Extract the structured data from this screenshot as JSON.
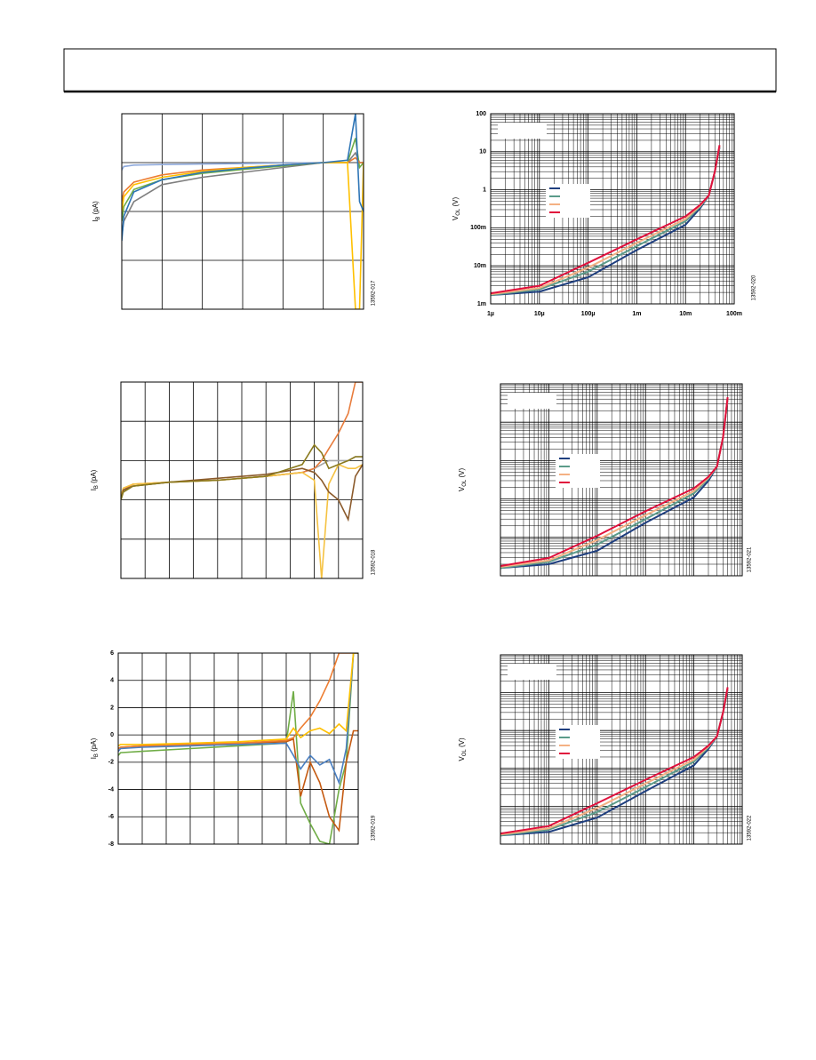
{
  "chart_data": [
    {
      "type": "line",
      "y_label": [
        "I",
        "B",
        " (pA)"
      ],
      "figure_id": "13592-017",
      "xlim": [
        0,
        6
      ],
      "ylim": [
        0,
        4
      ],
      "xticks": [
        0,
        1,
        2,
        3,
        4,
        5,
        6
      ],
      "yticks": [
        0,
        1,
        2,
        3,
        4
      ],
      "x_tick_labels": false,
      "y_tick_labels": false,
      "grid": true,
      "x": [
        0,
        0.05,
        0.3,
        1,
        2,
        3,
        4,
        5,
        5.6,
        5.8,
        5.9,
        6
      ],
      "series": [
        {
          "color": "#8faadc",
          "values": [
            2.85,
            2.92,
            2.95,
            2.96,
            2.97,
            2.98,
            2.99,
            3.0,
            3.0,
            3.1,
            3.0,
            3.0
          ]
        },
        {
          "color": "#7f7f7f",
          "values": [
            1.5,
            1.8,
            2.2,
            2.55,
            2.7,
            2.8,
            2.9,
            3.0,
            3.0,
            3.2,
            3.0,
            3.0
          ]
        },
        {
          "color": "#70ad47",
          "values": [
            1.8,
            2.1,
            2.45,
            2.65,
            2.78,
            2.86,
            2.93,
            3.0,
            3.0,
            3.5,
            2.9,
            3.0
          ]
        },
        {
          "color": "#ed7d31",
          "values": [
            2.2,
            2.4,
            2.6,
            2.75,
            2.85,
            2.9,
            2.95,
            3.0,
            3.0,
            3.1,
            3.0,
            3.0
          ]
        },
        {
          "color": "#ffc000",
          "values": [
            2.0,
            2.3,
            2.55,
            2.7,
            2.82,
            2.9,
            2.95,
            3.0,
            3.0,
            0,
            0,
            3.0
          ]
        },
        {
          "color": "#2e75b6",
          "values": [
            1.4,
            1.9,
            2.4,
            2.65,
            2.8,
            2.88,
            2.95,
            3.0,
            3.05,
            4,
            2.2,
            2.0
          ]
        }
      ]
    },
    {
      "type": "line",
      "y_label": [
        "V",
        "OL",
        " (V)"
      ],
      "figure_id": "13592-020",
      "xlog": true,
      "ylog": true,
      "xlim": [
        1e-06,
        0.1
      ],
      "ylim": [
        0.001,
        100
      ],
      "xticks": [
        {
          "value": 1e-06,
          "label": "1µ"
        },
        {
          "value": 1e-05,
          "label": "10µ"
        },
        {
          "value": 0.0001,
          "label": "100µ"
        },
        {
          "value": 0.001,
          "label": "1m"
        },
        {
          "value": 0.01,
          "label": "10m"
        },
        {
          "value": 0.1,
          "label": "100m"
        }
      ],
      "yticks": [
        {
          "value": 0.001,
          "label": "1m"
        },
        {
          "value": 0.01,
          "label": "10m"
        },
        {
          "value": 0.1,
          "label": "100m"
        },
        1,
        10,
        100
      ],
      "x_tick_labels": true,
      "y_tick_labels": true,
      "grid": true,
      "x": [
        1e-06,
        1e-05,
        0.0001,
        0.001,
        0.01,
        0.02,
        0.03,
        0.04,
        0.05
      ],
      "series": [
        {
          "color": "#1f3f7f",
          "values": [
            0.0017,
            0.0021,
            0.005,
            0.026,
            0.12,
            0.33,
            0.7,
            3,
            13
          ]
        },
        {
          "color": "#5b9b8a",
          "values": [
            0.0017,
            0.0024,
            0.007,
            0.033,
            0.15,
            0.36,
            0.7,
            3,
            14
          ]
        },
        {
          "color": "#f4b183",
          "values": [
            0.0018,
            0.0026,
            0.009,
            0.04,
            0.17,
            0.38,
            0.7,
            3,
            14
          ]
        },
        {
          "color": "#e0103c",
          "values": [
            0.0019,
            0.003,
            0.012,
            0.05,
            0.2,
            0.4,
            0.7,
            3,
            15
          ]
        }
      ]
    },
    {
      "type": "line",
      "y_label": [
        "I",
        "B",
        " (pA)"
      ],
      "figure_id": "13592-018",
      "xlim": [
        0,
        10
      ],
      "ylim": [
        0,
        5
      ],
      "xticks": [
        0,
        1,
        2,
        3,
        4,
        5,
        6,
        7,
        8,
        9,
        10
      ],
      "yticks": [
        0,
        1,
        2,
        3,
        4,
        5
      ],
      "x_tick_labels": false,
      "y_tick_labels": false,
      "grid": true,
      "x": [
        0,
        0.1,
        0.5,
        2,
        4,
        6,
        7.5,
        8,
        8.3,
        8.6,
        9,
        9.4,
        9.7,
        10
      ],
      "series": [
        {
          "color": "#a5a5a5",
          "values": [
            2.0,
            2.2,
            2.35,
            2.45,
            2.5,
            2.6,
            2.7,
            2.8,
            2.9,
            3.0,
            3.0,
            3.0,
            3.1,
            3.1
          ]
        },
        {
          "color": "#e87c3c",
          "values": [
            2.1,
            2.25,
            2.4,
            2.45,
            2.5,
            2.6,
            2.7,
            2.8,
            3.0,
            3.3,
            3.7,
            4.2,
            5,
            5
          ]
        },
        {
          "color": "#f5c242",
          "values": [
            2.1,
            2.3,
            2.4,
            2.45,
            2.5,
            2.6,
            2.7,
            2.5,
            0,
            2.4,
            2.9,
            2.8,
            2.8,
            2.9
          ]
        },
        {
          "color": "#8b5a2b",
          "values": [
            2.0,
            2.25,
            2.35,
            2.45,
            2.55,
            2.65,
            2.8,
            2.7,
            2.5,
            2.2,
            2.0,
            1.5,
            2.6,
            2.9
          ]
        },
        {
          "color": "#8a7a1e",
          "values": [
            2.0,
            2.2,
            2.35,
            2.45,
            2.5,
            2.6,
            2.9,
            3.4,
            3.2,
            2.8,
            2.9,
            3.0,
            3.1,
            3.1
          ]
        }
      ]
    },
    {
      "type": "line",
      "y_label": [
        "V",
        "OL",
        " (V)"
      ],
      "figure_id": "13592-021",
      "xlog": true,
      "ylog": true,
      "xlim": [
        1e-06,
        0.1
      ],
      "ylim": [
        0.001,
        100
      ],
      "xticks": [
        1e-06,
        1e-05,
        0.0001,
        0.001,
        0.01,
        0.1
      ],
      "yticks": [
        0.001,
        0.01,
        0.1,
        1,
        10,
        100
      ],
      "x_tick_labels": false,
      "y_tick_labels": false,
      "grid": true,
      "x": [
        1e-06,
        1e-05,
        0.0001,
        0.001,
        0.01,
        0.02,
        0.03,
        0.04,
        0.05
      ],
      "series": [
        {
          "color": "#1f3f7f",
          "values": [
            0.0016,
            0.002,
            0.0045,
            0.024,
            0.11,
            0.3,
            0.7,
            4,
            40
          ]
        },
        {
          "color": "#5b9b8a",
          "values": [
            0.0016,
            0.0023,
            0.0065,
            0.03,
            0.14,
            0.34,
            0.7,
            4,
            42
          ]
        },
        {
          "color": "#f4b183",
          "values": [
            0.0017,
            0.0025,
            0.0085,
            0.038,
            0.16,
            0.36,
            0.7,
            4,
            42
          ]
        },
        {
          "color": "#e0103c",
          "values": [
            0.0018,
            0.0029,
            0.011,
            0.048,
            0.19,
            0.38,
            0.7,
            4,
            45
          ]
        }
      ]
    },
    {
      "type": "line",
      "y_label": [
        "I",
        "B",
        " (pA)"
      ],
      "figure_id": "13592-019",
      "xlim": [
        0,
        10
      ],
      "ylim": [
        -8,
        6
      ],
      "xticks": [
        0,
        1,
        2,
        3,
        4,
        5,
        6,
        7,
        8,
        9,
        10
      ],
      "yticks": [
        6,
        4,
        2,
        0,
        -2,
        -4,
        -6,
        -8
      ],
      "x_tick_labels": false,
      "y_tick_labels": true,
      "grid": true,
      "x": [
        0,
        0.1,
        1,
        3,
        5,
        7,
        7.3,
        7.6,
        8,
        8.4,
        8.8,
        9.2,
        9.5,
        9.8,
        10
      ],
      "series": [
        {
          "color": "#70ad47",
          "values": [
            -1.5,
            -1.3,
            -1.2,
            -1,
            -0.8,
            -0.6,
            3.2,
            -5,
            -6.5,
            -7.8,
            -8,
            -4,
            -2,
            6,
            6
          ]
        },
        {
          "color": "#c55a11",
          "values": [
            -1,
            -0.9,
            -0.8,
            -0.7,
            -0.6,
            -0.5,
            -0.3,
            -4.5,
            -2,
            -3.5,
            -6,
            -7,
            -2,
            0.3,
            0.3
          ]
        },
        {
          "color": "#ed7d31",
          "values": [
            -1,
            -0.9,
            -0.8,
            -0.7,
            -0.6,
            -0.4,
            -0.2,
            0.5,
            1.3,
            2.5,
            4,
            6,
            6,
            6,
            6
          ]
        },
        {
          "color": "#4a7fc1",
          "values": [
            -1.2,
            -1,
            -0.9,
            -0.8,
            -0.7,
            -0.6,
            -1.5,
            -2.5,
            -1.5,
            -2.2,
            -1.8,
            -3.5,
            -1,
            6,
            6
          ]
        },
        {
          "color": "#ffc000",
          "values": [
            -0.8,
            -0.7,
            -0.7,
            -0.6,
            -0.5,
            -0.3,
            0.5,
            -0.2,
            0.3,
            0.5,
            0.1,
            0.8,
            0.3,
            6,
            6
          ]
        }
      ]
    },
    {
      "type": "line",
      "y_label": [
        "V",
        "OL",
        " (V)"
      ],
      "figure_id": "13592-022",
      "xlog": true,
      "ylog": true,
      "xlim": [
        1e-06,
        0.1
      ],
      "ylim": [
        0.001,
        100
      ],
      "xticks": [
        1e-06,
        1e-05,
        0.0001,
        0.001,
        0.01,
        0.1
      ],
      "yticks": [
        0.001,
        0.01,
        0.1,
        1,
        10,
        100
      ],
      "x_tick_labels": false,
      "y_tick_labels": false,
      "grid": true,
      "x": [
        1e-06,
        1e-05,
        0.0001,
        0.001,
        0.01,
        0.02,
        0.03,
        0.04,
        0.05
      ],
      "series": [
        {
          "color": "#1f3f7f",
          "values": [
            0.0017,
            0.0021,
            0.005,
            0.025,
            0.12,
            0.33,
            0.7,
            3,
            12
          ]
        },
        {
          "color": "#5b9b8a",
          "values": [
            0.0017,
            0.0024,
            0.007,
            0.032,
            0.15,
            0.36,
            0.7,
            3,
            13
          ]
        },
        {
          "color": "#f4b183",
          "values": [
            0.0018,
            0.0026,
            0.009,
            0.04,
            0.17,
            0.38,
            0.7,
            3,
            13
          ]
        },
        {
          "color": "#e0103c",
          "values": [
            0.0019,
            0.003,
            0.012,
            0.05,
            0.2,
            0.4,
            0.7,
            3,
            14
          ]
        }
      ]
    }
  ]
}
